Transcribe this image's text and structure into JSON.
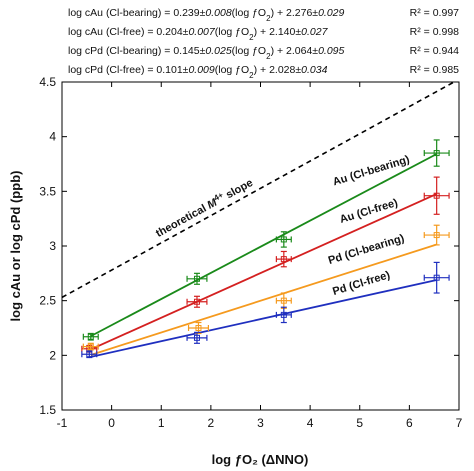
{
  "equations": [
    {
      "lhs": "log cAu (Cl-bearing) = 0.239±",
      "slope_err": "0.008",
      "mid": "(log ƒO",
      "tail": ") + 2.276±",
      "int_err": "0.029",
      "r2": "R² = 0.997"
    },
    {
      "lhs": "log cAu (Cl-free) = 0.204±",
      "slope_err": "0.007",
      "mid": "(log ƒO",
      "tail": ") + 2.140±",
      "int_err": "0.027",
      "r2": "R² = 0.998"
    },
    {
      "lhs": "log cPd (Cl-bearing) = 0.145±",
      "slope_err": "0.025",
      "mid": "(log ƒO",
      "tail": ") + 2.064±",
      "int_err": "0.095",
      "r2": "R² = 0.944"
    },
    {
      "lhs": "log cPd (Cl-free) = 0.101±",
      "slope_err": "0.009",
      "mid": "(log ƒO",
      "tail": ") + 2.028±",
      "int_err": "0.034",
      "r2": "R² = 0.985"
    }
  ],
  "chart_data": {
    "type": "scatter",
    "xlabel": "log ƒO₂ (ΔNNO)",
    "ylabel": "log cAu or log cPd (ppb)",
    "xlim": [
      -1,
      7
    ],
    "ylim": [
      1.5,
      4.5
    ],
    "x_ticks": [
      "-1",
      "0",
      "1",
      "2",
      "3",
      "4",
      "5",
      "6",
      "7"
    ],
    "y_ticks": [
      "1.5",
      "2",
      "2.5",
      "3",
      "3.5",
      "4",
      "4.5"
    ],
    "grid": false,
    "annotation": {
      "text_before": "theoretical ",
      "text_italic": "M",
      "text_sup": "4+",
      "text_after": " slope",
      "x1": -1,
      "y1": 2.53,
      "x2": 6.9,
      "y2": 4.5,
      "style": "dashed"
    },
    "series": [
      {
        "name": "Au (Cl-bearing)",
        "color": "#1a8a1a",
        "x": [
          -0.42,
          1.72,
          3.47,
          6.55
        ],
        "y": [
          2.17,
          2.7,
          3.06,
          3.85
        ],
        "xerr": [
          0.15,
          0.2,
          0.15,
          0.25
        ],
        "yerr": [
          0.03,
          0.05,
          0.07,
          0.12
        ],
        "fit": {
          "slope": 0.239,
          "intercept": 2.276
        }
      },
      {
        "name": "Au (Cl-free)",
        "color": "#d42020",
        "x": [
          -0.45,
          1.72,
          3.47,
          6.55
        ],
        "y": [
          2.06,
          2.49,
          2.88,
          3.46
        ],
        "xerr": [
          0.15,
          0.2,
          0.15,
          0.25
        ],
        "yerr": [
          0.03,
          0.05,
          0.07,
          0.17
        ],
        "fit": {
          "slope": 0.204,
          "intercept": 2.14
        }
      },
      {
        "name": "Pd (Cl-bearing)",
        "color": "#f59a1e",
        "x": [
          -0.42,
          1.75,
          3.47,
          6.55
        ],
        "y": [
          2.08,
          2.25,
          2.5,
          3.1
        ],
        "xerr": [
          0.15,
          0.2,
          0.15,
          0.25
        ],
        "yerr": [
          0.03,
          0.05,
          0.07,
          0.09
        ],
        "fit": {
          "slope": 0.145,
          "intercept": 2.064
        }
      },
      {
        "name": "Pd (Cl-free)",
        "color": "#1f2fbf",
        "x": [
          -0.45,
          1.72,
          3.47,
          6.55
        ],
        "y": [
          2.01,
          2.16,
          2.37,
          2.71
        ],
        "xerr": [
          0.15,
          0.2,
          0.15,
          0.25
        ],
        "yerr": [
          0.03,
          0.05,
          0.07,
          0.14
        ],
        "fit": {
          "slope": 0.101,
          "intercept": 2.028
        }
      }
    ]
  }
}
